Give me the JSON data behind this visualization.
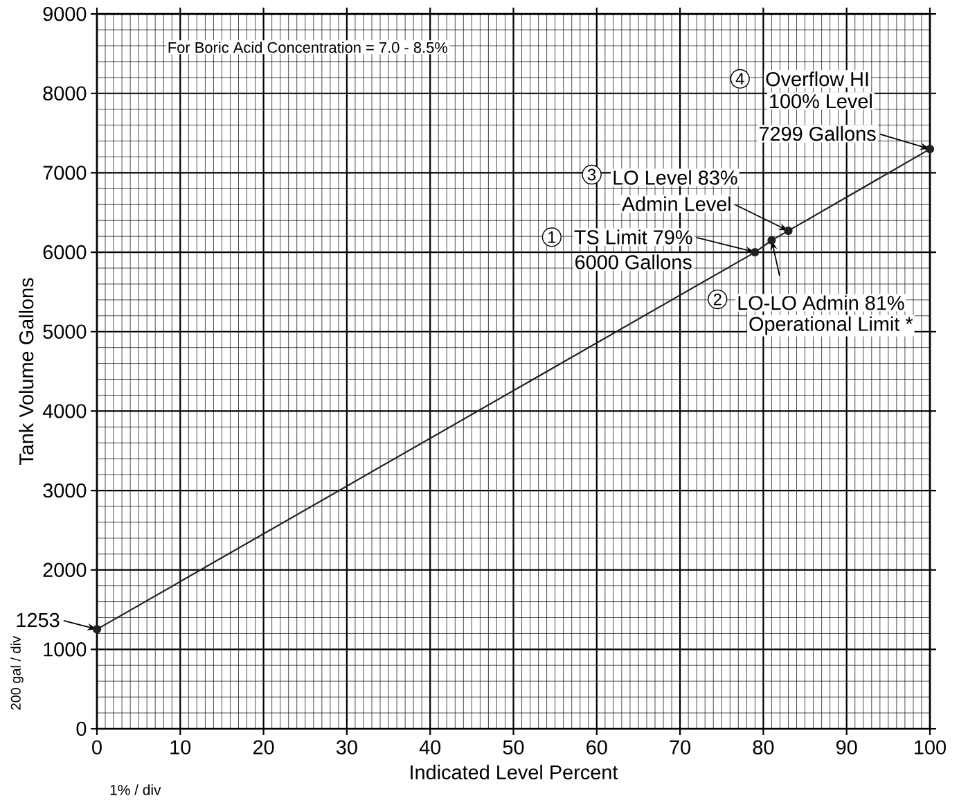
{
  "chart_data": {
    "type": "line",
    "xlabel": "Indicated Level Percent",
    "ylabel": "Tank Volume Gallons",
    "x": [
      0,
      79,
      81,
      83,
      100
    ],
    "series": [
      {
        "color": "#231f20",
        "values": [
          1253,
          6000,
          6150,
          6270,
          7299
        ]
      }
    ],
    "xlim": [
      0,
      100
    ],
    "ylim": [
      0,
      9000
    ],
    "xticks": [
      0,
      10,
      20,
      30,
      40,
      50,
      60,
      70,
      80,
      90,
      100
    ],
    "yticks": [
      0,
      1000,
      2000,
      3000,
      4000,
      5000,
      6000,
      7000,
      8000,
      9000
    ],
    "grid": true,
    "marker": "circle",
    "line_style": "solid",
    "annotations": [
      "For Boric Acid Concentration = 7.0 - 8.5%",
      "1",
      {
        "text": "TS Limit 79%",
        "x": 79,
        "y": 6000
      },
      "6000 Gallons",
      "2",
      {
        "text": "LO-LO Admin  81%",
        "x": 81,
        "y": 6150
      },
      "Operational Limit *",
      "3",
      {
        "text": "LO Level 83%",
        "x": 83,
        "y": 6270
      },
      "Admin Level",
      "4",
      "Overflow HI",
      "100% Level",
      {
        "text": "7299 Gallons",
        "x": 100,
        "y": 7299
      },
      {
        "text": "1253",
        "x": 0,
        "y": 1253
      },
      "200 gal / div",
      "1% / div"
    ]
  }
}
